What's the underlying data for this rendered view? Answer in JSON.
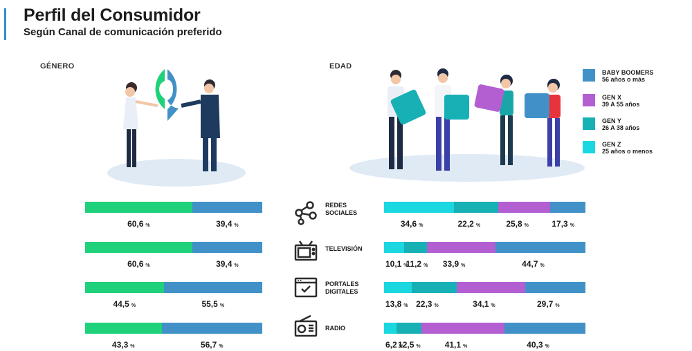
{
  "header": {
    "title": "Perfil del Consumidor",
    "subtitle": "Según Canal de comunicación preferido"
  },
  "sections": {
    "genero": "GÉNERO",
    "edad": "EDAD"
  },
  "colors": {
    "female": "#1fd17a",
    "male": "#4191c8",
    "baby_boomers": "#4191c8",
    "gen_x": "#b35fd2",
    "gen_y": "#17b0b5",
    "gen_z": "#1ad7e0",
    "accent": "#2f8fcf"
  },
  "legend": [
    {
      "name": "BABY BOOMERS",
      "sub": "56 años o más",
      "color": "#4191c8"
    },
    {
      "name": "GEN X",
      "sub": "39 A 55 años",
      "color": "#b35fd2"
    },
    {
      "name": "GEN Y",
      "sub": "26 A 38 años",
      "color": "#17b0b5"
    },
    {
      "name": "GEN Z",
      "sub": "25 años o menos",
      "color": "#1ad7e0"
    }
  ],
  "channels": [
    {
      "line1": "REDES",
      "line2": "SOCIALES",
      "icon": "network-icon"
    },
    {
      "line1": "TELEVISIÓN",
      "line2": "",
      "icon": "television-icon"
    },
    {
      "line1": "PORTALES",
      "line2": "DIGITALES",
      "icon": "web-portal-icon"
    },
    {
      "line1": "RADIO",
      "line2": "",
      "icon": "radio-icon"
    }
  ],
  "pct_symbol": "%",
  "chart_data": [
    {
      "type": "bar",
      "stacked": true,
      "orientation": "horizontal",
      "categories": [
        "REDES SOCIALES",
        "TELEVISIÓN",
        "PORTALES DIGITALES",
        "RADIO"
      ],
      "series": [
        {
          "values": [
            60.6,
            60.6,
            44.5,
            43.3
          ],
          "labels": [
            "60,6",
            "60,6",
            "44,5",
            "43,3"
          ]
        },
        {
          "values": [
            39.4,
            39.4,
            55.5,
            56.7
          ],
          "labels": [
            "39,4",
            "39,4",
            "55,5",
            "56,7"
          ]
        }
      ],
      "xlim": [
        0,
        100
      ]
    },
    {
      "type": "bar",
      "stacked": true,
      "orientation": "horizontal",
      "categories": [
        "REDES SOCIALES",
        "TELEVISIÓN",
        "PORTALES DIGITALES",
        "RADIO"
      ],
      "series": [
        {
          "name": "GEN Z",
          "values": [
            34.6,
            10.1,
            13.8,
            6.2
          ],
          "labels": [
            "34,6",
            "10,1",
            "13,8",
            "6,2"
          ]
        },
        {
          "name": "GEN Y",
          "values": [
            22.2,
            11.2,
            22.3,
            12.5
          ],
          "labels": [
            "22,2",
            "11,2",
            "22,3",
            "12,5"
          ]
        },
        {
          "name": "GEN X",
          "values": [
            25.8,
            33.9,
            34.1,
            41.1
          ],
          "labels": [
            "25,8",
            "33,9",
            "34,1",
            "41,1"
          ]
        },
        {
          "name": "BABY BOOMERS",
          "values": [
            17.3,
            44.7,
            29.7,
            40.3
          ],
          "labels": [
            "17,3",
            "44,7",
            "29,7",
            "40,3"
          ]
        }
      ],
      "xlim": [
        0,
        100
      ]
    }
  ]
}
